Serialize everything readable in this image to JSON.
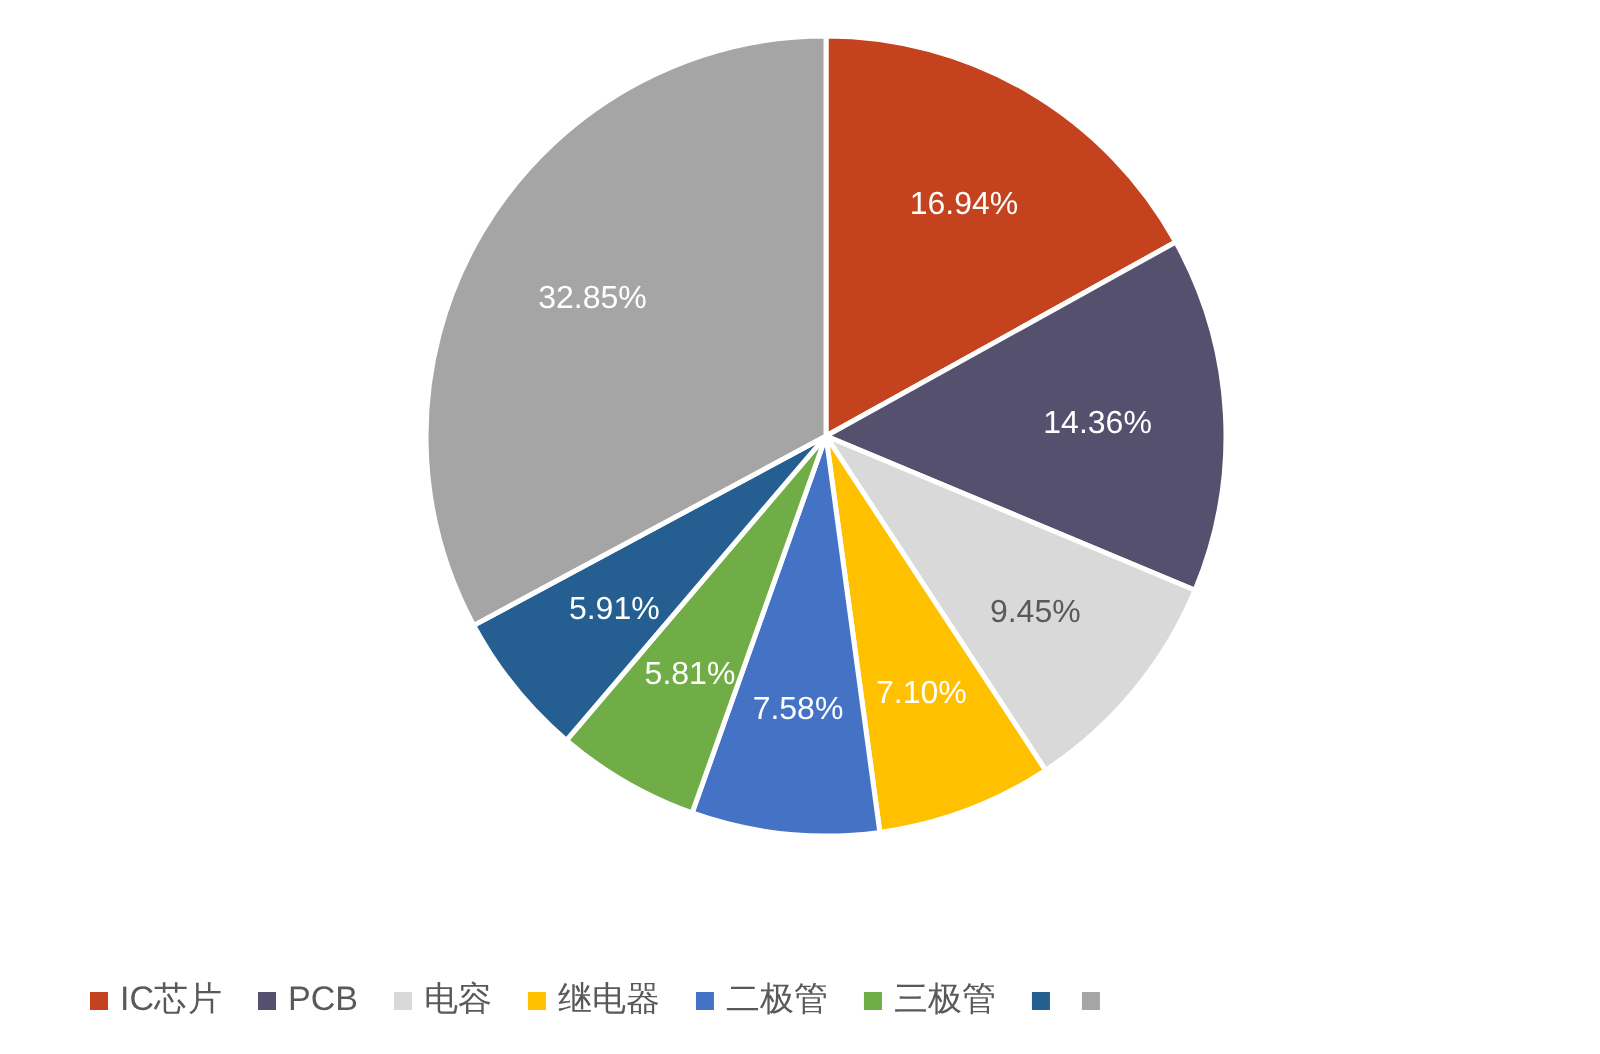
{
  "chart_data": {
    "type": "pie",
    "categories": [
      "IC芯片",
      "PCB",
      "电容",
      "继电器",
      "二极管",
      "三极管",
      null,
      null
    ],
    "values": [
      16.94,
      14.36,
      9.45,
      7.1,
      7.58,
      5.81,
      5.91,
      32.85
    ],
    "value_labels": [
      "16.94%",
      "14.36%",
      "9.45%",
      "7.10%",
      "7.58%",
      "5.81%",
      "5.91%",
      "32.85%"
    ],
    "colors": [
      "#c5421f",
      "#56506f",
      "#d9d9d9",
      "#ffc000",
      "#4472c4",
      "#70ad47",
      "#255e91",
      "#a5a5a5"
    ],
    "legend": "bottom"
  }
}
